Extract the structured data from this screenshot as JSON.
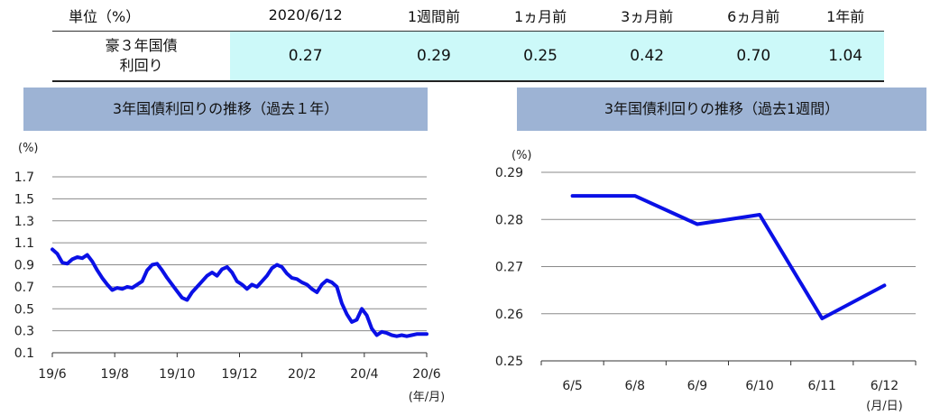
{
  "summary_table": {
    "headers": [
      "単位（%）",
      "2020/6/12",
      "1週間前",
      "1ヵ月前",
      "3ヵ月前",
      "6ヵ月前",
      "1年前"
    ],
    "row_label_line1": "豪３年国債",
    "row_label_line2": "利回り",
    "values": [
      "0.27",
      "0.29",
      "0.25",
      "0.42",
      "0.70",
      "1.04"
    ]
  },
  "chart_data": [
    {
      "type": "line",
      "title": "3年国債利回りの推移（過去１年）",
      "ylabel": "(%)",
      "xlabel": "(年/月)",
      "ylim": [
        0.1,
        1.7
      ],
      "yticks": [
        "1.7",
        "1.5",
        "1.3",
        "1.1",
        "0.9",
        "0.7",
        "0.5",
        "0.3",
        "0.1"
      ],
      "xticks": [
        "19/6",
        "19/8",
        "19/10",
        "19/12",
        "20/2",
        "20/4",
        "20/6"
      ],
      "grid": true,
      "color": "#0a10e6",
      "series": [
        {
          "values": [
            1.04,
            1.0,
            0.92,
            0.91,
            0.95,
            0.97,
            0.96,
            0.99,
            0.93,
            0.85,
            0.78,
            0.72,
            0.67,
            0.69,
            0.68,
            0.7,
            0.69,
            0.72,
            0.75,
            0.85,
            0.9,
            0.91,
            0.85,
            0.78,
            0.72,
            0.66,
            0.6,
            0.58,
            0.65,
            0.7,
            0.75,
            0.8,
            0.83,
            0.8,
            0.86,
            0.88,
            0.83,
            0.75,
            0.72,
            0.68,
            0.72,
            0.7,
            0.75,
            0.8,
            0.87,
            0.9,
            0.88,
            0.82,
            0.78,
            0.77,
            0.74,
            0.72,
            0.68,
            0.65,
            0.72,
            0.76,
            0.74,
            0.7,
            0.55,
            0.45,
            0.38,
            0.4,
            0.5,
            0.44,
            0.32,
            0.26,
            0.29,
            0.28,
            0.26,
            0.25,
            0.26,
            0.25,
            0.26,
            0.27,
            0.27,
            0.27
          ]
        }
      ]
    },
    {
      "type": "line",
      "title": "3年国債利回りの推移（過去1週間）",
      "ylabel": "(%)",
      "xlabel": "(月/日)",
      "ylim": [
        0.25,
        0.29
      ],
      "yticks": [
        "0.29",
        "0.28",
        "0.27",
        "0.26",
        "0.25"
      ],
      "categories": [
        "6/5",
        "6/8",
        "6/9",
        "6/10",
        "6/11",
        "6/12"
      ],
      "grid": true,
      "color": "#0a10e6",
      "series": [
        {
          "values": [
            0.285,
            0.285,
            0.279,
            0.281,
            0.259,
            0.266
          ]
        }
      ]
    }
  ]
}
